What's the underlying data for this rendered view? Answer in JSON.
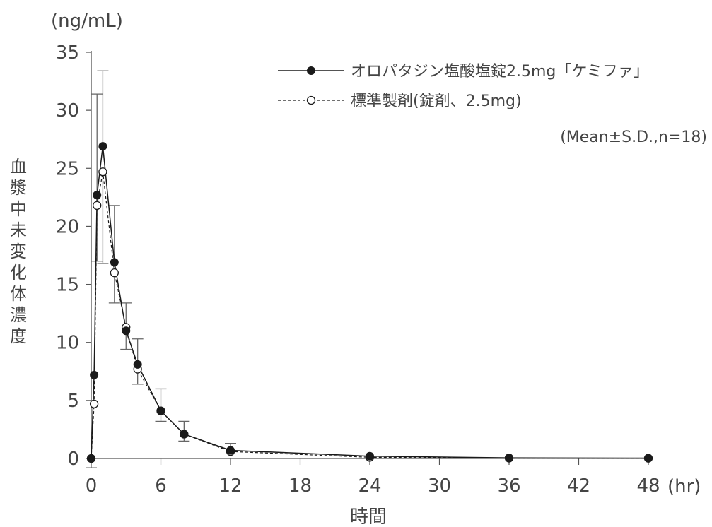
{
  "chart_data": {
    "type": "line",
    "x": [
      0,
      0.25,
      0.5,
      1,
      2,
      3,
      4,
      6,
      8,
      12,
      24,
      36,
      48
    ],
    "x_ticks": [
      "0",
      "6",
      "12",
      "18",
      "24",
      "30",
      "36",
      "42",
      "48"
    ],
    "y_ticks": [
      "0",
      "5",
      "10",
      "15",
      "20",
      "25",
      "30",
      "35"
    ],
    "xlim": [
      0,
      48
    ],
    "ylim": [
      0,
      35
    ],
    "xlabel": "時間",
    "x_unit": "(hr)",
    "ylabel": "血漿中未変化体濃度",
    "y_unit": "(ng/mL)",
    "annotation": "(Mean±S.D.,n=18)",
    "legend_position": "top-right",
    "grid": false,
    "series": [
      {
        "name": "オロパタジン塩酸塩錠2.5mg「ケミファ」",
        "marker": "filled-circle",
        "line": "solid",
        "values": [
          0,
          7.2,
          22.7,
          26.9,
          16.9,
          11.0,
          8.1,
          4.1,
          2.1,
          0.7,
          0.2,
          0.05,
          0.03
        ],
        "sd": [
          0,
          0,
          8.7,
          6.5,
          4.9,
          2.4,
          2.2,
          1.9,
          1.1,
          0.6,
          0,
          0,
          0
        ],
        "error_direction": "up"
      },
      {
        "name": "標準製剤(錠剤、2.5mg)",
        "marker": "open-circle",
        "line": "dashed",
        "values": [
          0,
          4.7,
          21.8,
          24.7,
          16.0,
          11.3,
          7.7,
          4.1,
          2.1,
          0.6,
          0.1,
          0.03,
          0.02
        ],
        "sd": [
          0.8,
          0,
          4.8,
          7.9,
          2.6,
          1.9,
          1.3,
          0.9,
          0.6,
          0,
          0,
          0,
          0
        ],
        "error_direction": "down"
      }
    ]
  },
  "colors": {
    "ink": "#1a1a1a",
    "text": "#444444",
    "axis": "#555555",
    "errorbar": "#666666"
  }
}
